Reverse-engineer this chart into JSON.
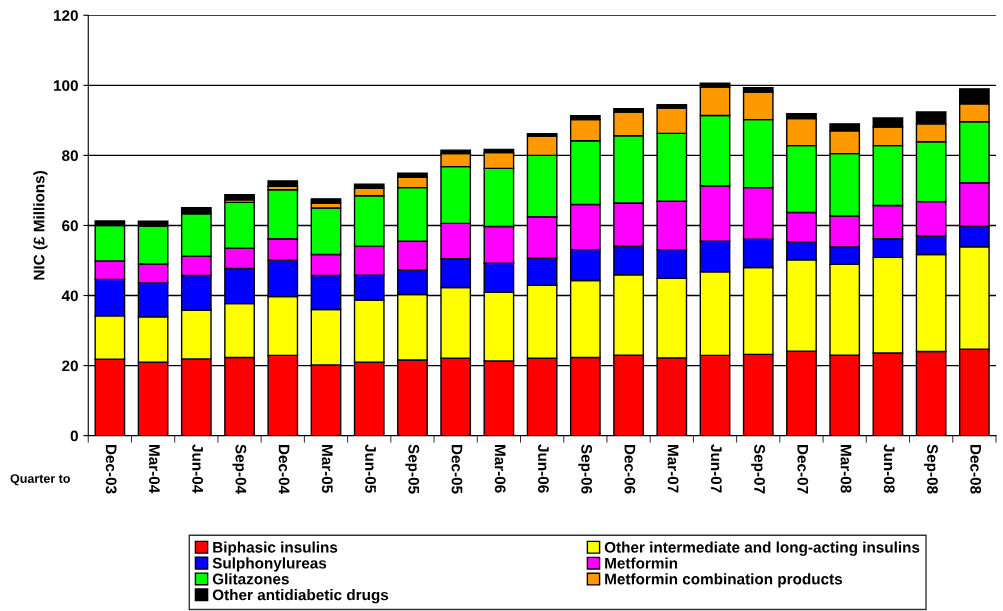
{
  "chart_data": {
    "type": "bar",
    "stacked": true,
    "ylabel": "NIC (£ Millions)",
    "annotations": [
      "Quarter to"
    ],
    "categories": [
      "Dec-03",
      "Mar-04",
      "Jun-04",
      "Sep-04",
      "Dec-04",
      "Mar-05",
      "Jun-05",
      "Sep-05",
      "Dec-05",
      "Mar-06",
      "Jun-06",
      "Sep-06",
      "Dec-06",
      "Mar-07",
      "Jun-07",
      "Sep-07",
      "Dec-07",
      "Mar-08",
      "Jun-08",
      "Sep-08",
      "Dec-08"
    ],
    "ylim": [
      0,
      120
    ],
    "yticks": [
      0,
      20,
      40,
      60,
      80,
      100,
      120
    ],
    "grid": "y",
    "legend": "bottom",
    "series": [
      {
        "name": "Biphasic insulins",
        "color": "#ff0000",
        "values": [
          21.8,
          21.0,
          21.9,
          22.3,
          22.9,
          20.2,
          21.0,
          21.6,
          22.1,
          21.3,
          22.1,
          22.3,
          23.0,
          22.2,
          22.9,
          23.2,
          24.1,
          23.0,
          23.6,
          24.0,
          24.7
        ]
      },
      {
        "name": "Other intermediate and long-acting insulins",
        "color": "#ffff00",
        "values": [
          12.4,
          12.9,
          13.9,
          15.4,
          16.8,
          15.8,
          17.7,
          18.7,
          20.2,
          19.6,
          20.8,
          22.0,
          22.9,
          22.7,
          23.9,
          24.8,
          26.1,
          25.9,
          27.3,
          27.7,
          29.2
        ]
      },
      {
        "name": "Sulphonylureas",
        "color": "#0000ff",
        "values": [
          10.4,
          9.7,
          9.9,
          10.0,
          10.4,
          9.7,
          7.1,
          7.0,
          8.2,
          8.3,
          7.8,
          8.8,
          8.2,
          8.2,
          8.7,
          8.1,
          5.1,
          5.0,
          5.3,
          5.3,
          5.9
        ]
      },
      {
        "name": "Metformin",
        "color": "#ff00ff",
        "values": [
          5.3,
          5.4,
          5.5,
          5.8,
          6.1,
          6.0,
          8.3,
          8.2,
          10.1,
          10.5,
          11.8,
          12.9,
          12.3,
          13.8,
          15.8,
          14.7,
          8.4,
          8.8,
          9.5,
          9.8,
          12.4
        ]
      },
      {
        "name": "Glitazones",
        "color": "#00ff00",
        "values": [
          10.1,
          10.8,
          12.1,
          13.1,
          14.0,
          13.3,
          14.4,
          15.3,
          16.2,
          16.6,
          17.5,
          18.2,
          19.2,
          19.4,
          20.1,
          19.4,
          19.1,
          17.8,
          17.1,
          17.1,
          17.4
        ]
      },
      {
        "name": "Metformin combination products",
        "color": "#ff9900",
        "values": [
          null,
          null,
          0.4,
          0.7,
          1.0,
          1.3,
          2.1,
          3.0,
          3.7,
          4.5,
          5.5,
          6.0,
          6.8,
          7.2,
          8.1,
          7.9,
          7.7,
          6.5,
          5.3,
          5.1,
          5.1
        ]
      },
      {
        "name": "Other antidiabetic drugs",
        "color": "#000000",
        "values": [
          1.3,
          1.4,
          1.4,
          1.5,
          1.5,
          1.3,
          1.2,
          1.1,
          1.0,
          0.9,
          0.7,
          1.1,
          0.9,
          1.0,
          1.1,
          1.2,
          1.4,
          2.0,
          2.6,
          3.4,
          4.3
        ]
      }
    ]
  }
}
